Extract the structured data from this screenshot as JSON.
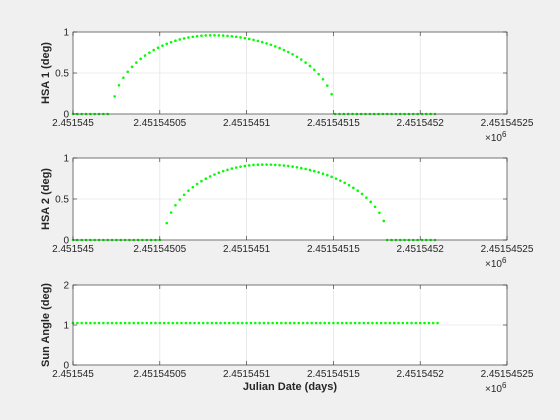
{
  "figure": {
    "background": "#f0f0f0",
    "axes_background": "#ffffff",
    "marker_color": "#00ff00"
  },
  "chart_data": [
    {
      "type": "scatter",
      "title": "",
      "xlabel": "",
      "ylabel": "HSA 1 (deg)",
      "xlim": [
        2451545,
        2451545.25
      ],
      "ylim": [
        0,
        1
      ],
      "xticks": [
        2451545,
        2451545.05,
        2451545.1,
        2451545.15,
        2451545.2,
        2451545.25
      ],
      "xtick_labels": [
        "2.451545",
        "2.45154505",
        "2.4515451",
        "2.45154515",
        "2.4515452",
        "2.45154525"
      ],
      "yticks": [
        0,
        0.5,
        1
      ],
      "ytick_labels": [
        "0",
        "0.5",
        "1"
      ],
      "x_multiplier": "×10",
      "x_multiplier_exp": "6",
      "grid": true,
      "series": [
        {
          "segments": [
            {
              "x_start": 2451545.0,
              "x_end": 2451545.022,
              "kind": "flat",
              "y": 0
            },
            {
              "x_start": 2451545.024,
              "x_end": 2451545.1495,
              "kind": "arc",
              "y_peak": 0.96,
              "x_peak": 2451545.08
            },
            {
              "x_start": 2451545.151,
              "x_end": 2451545.21,
              "kind": "flat",
              "y": 0
            }
          ]
        }
      ]
    },
    {
      "type": "scatter",
      "title": "",
      "xlabel": "",
      "ylabel": "HSA 2 (deg)",
      "xlim": [
        2451545,
        2451545.25
      ],
      "ylim": [
        0,
        1
      ],
      "xticks": [
        2451545,
        2451545.05,
        2451545.1,
        2451545.15,
        2451545.2,
        2451545.25
      ],
      "xtick_labels": [
        "2.451545",
        "2.45154505",
        "2.4515451",
        "2.45154515",
        "2.4515452",
        "2.45154525"
      ],
      "yticks": [
        0,
        0.5,
        1
      ],
      "ytick_labels": [
        "0",
        "0.5",
        "1"
      ],
      "x_multiplier": "×10",
      "x_multiplier_exp": "6",
      "grid": true,
      "series": [
        {
          "segments": [
            {
              "x_start": 2451545.0,
              "x_end": 2451545.052,
              "kind": "flat",
              "y": 0
            },
            {
              "x_start": 2451545.054,
              "x_end": 2451545.1795,
              "kind": "arc",
              "y_peak": 0.92,
              "x_peak": 2451545.11
            },
            {
              "x_start": 2451545.181,
              "x_end": 2451545.21,
              "kind": "flat",
              "y": 0
            }
          ]
        }
      ]
    },
    {
      "type": "scatter",
      "title": "",
      "xlabel": "Julian Date (days)",
      "ylabel": "Sun Angle (deg)",
      "xlim": [
        2451545,
        2451545.25
      ],
      "ylim": [
        0,
        2
      ],
      "xticks": [
        2451545,
        2451545.05,
        2451545.1,
        2451545.15,
        2451545.2,
        2451545.25
      ],
      "xtick_labels": [
        "2.451545",
        "2.45154505",
        "2.4515451",
        "2.45154515",
        "2.4515452",
        "2.45154525"
      ],
      "yticks": [
        0,
        1,
        2
      ],
      "ytick_labels": [
        "0",
        "1",
        "2"
      ],
      "x_multiplier": "×10",
      "x_multiplier_exp": "6",
      "grid": true,
      "series": [
        {
          "segments": [
            {
              "x_start": 2451545.0,
              "x_end": 2451545.21,
              "kind": "flat",
              "y": 1.05
            }
          ]
        }
      ]
    }
  ]
}
